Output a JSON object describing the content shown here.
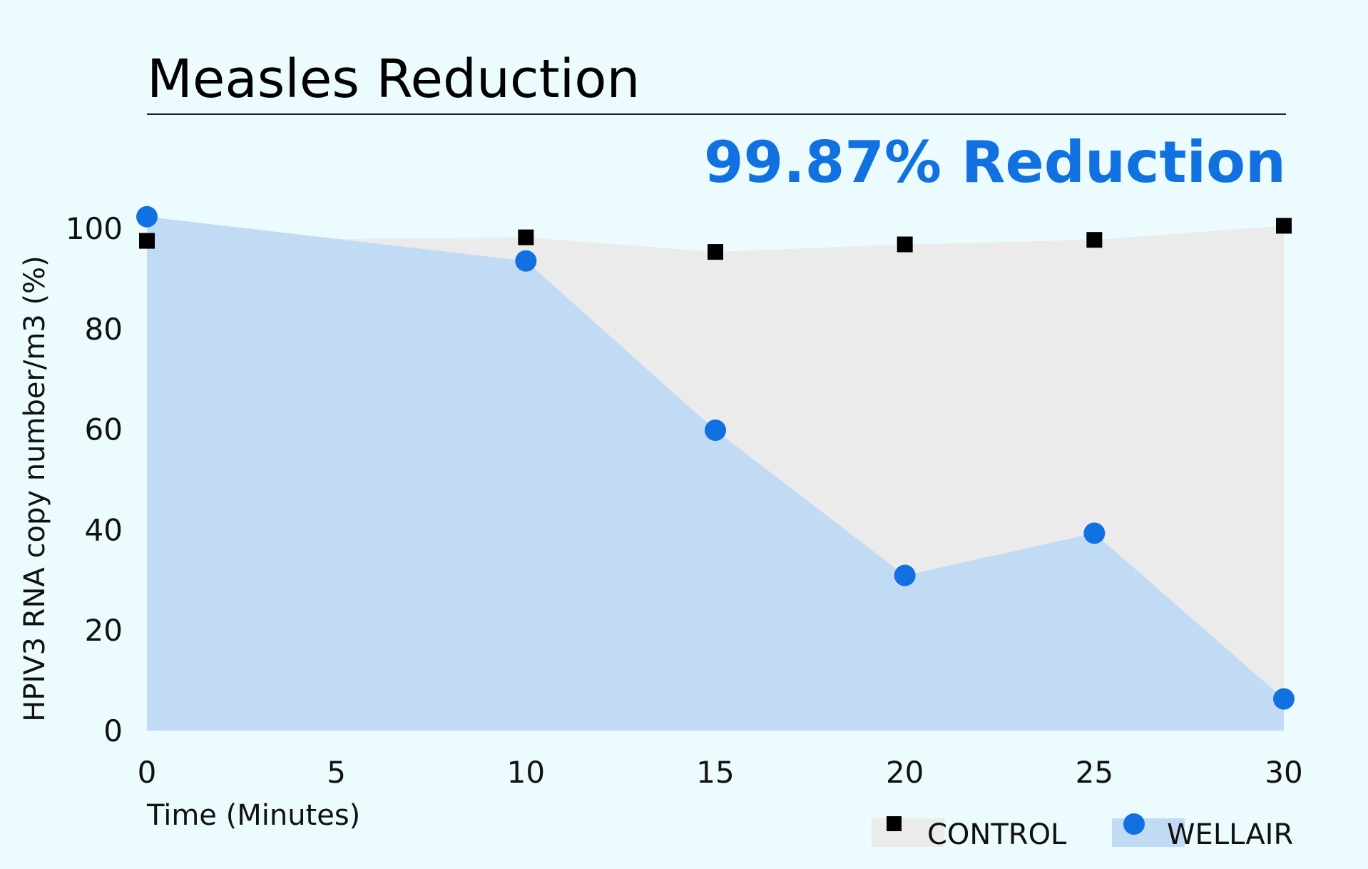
{
  "chart_data": {
    "type": "area",
    "title": "Measles Reduction",
    "annotation": "99.87% Reduction",
    "xlabel": "Time (Minutes)",
    "ylabel": "HPIV3 RNA copy number/m3 (%)",
    "xlim": [
      0,
      30
    ],
    "ylim": [
      0,
      100
    ],
    "x_ticks": [
      0,
      5,
      10,
      15,
      20,
      25,
      30
    ],
    "y_ticks": [
      0,
      20,
      40,
      60,
      80,
      100
    ],
    "grid": false,
    "legend_position": "bottom-right",
    "series": [
      {
        "name": "CONTROL",
        "marker": "square",
        "color": "#000000",
        "fill": "#ebebeb",
        "x": [
          0,
          10,
          15,
          20,
          25,
          30
        ],
        "y": [
          97.5,
          98.2,
          95.3,
          96.8,
          97.7,
          100.5
        ]
      },
      {
        "name": "WELLAIR",
        "marker": "circle",
        "color": "#1271e0",
        "fill": "#c2dbf5",
        "x": [
          0,
          10,
          15,
          20,
          25,
          30
        ],
        "y": [
          102.3,
          93.5,
          59.8,
          30.9,
          39.3,
          6.3
        ]
      }
    ]
  }
}
